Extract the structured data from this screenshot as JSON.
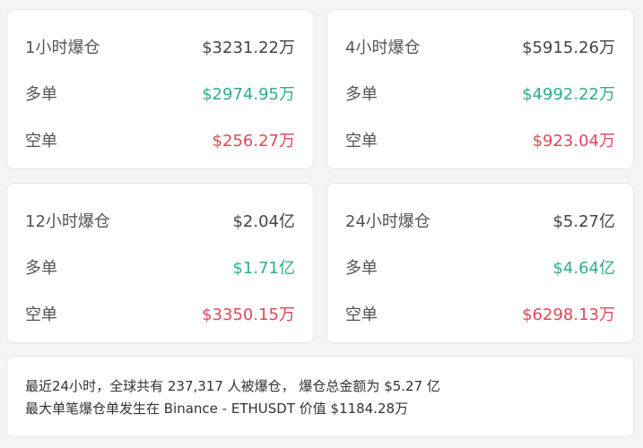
{
  "colors": {
    "long": "#2ead8c",
    "short": "#e2475a"
  },
  "cards": [
    {
      "title": "1小时爆仓",
      "total": "$3231.22万",
      "long_label": "多单",
      "long": "$2974.95万",
      "short_label": "空单",
      "short": "$256.27万"
    },
    {
      "title": "4小时爆仓",
      "total": "$5915.26万",
      "long_label": "多单",
      "long": "$4992.22万",
      "short_label": "空单",
      "short": "$923.04万"
    },
    {
      "title": "12小时爆仓",
      "total": "$2.04亿",
      "long_label": "多单",
      "long": "$1.71亿",
      "short_label": "空单",
      "short": "$3350.15万"
    },
    {
      "title": "24小时爆仓",
      "total": "$5.27亿",
      "long_label": "多单",
      "long": "$4.64亿",
      "short_label": "空单",
      "short": "$6298.13万"
    }
  ],
  "summary": {
    "line1": "最近24小时，全球共有 237,317 人被爆仓， 爆仓总金额为 $5.27 亿",
    "line2": "最大单笔爆仓单发生在 Binance - ETHUSDT 价值 $1184.28万"
  }
}
